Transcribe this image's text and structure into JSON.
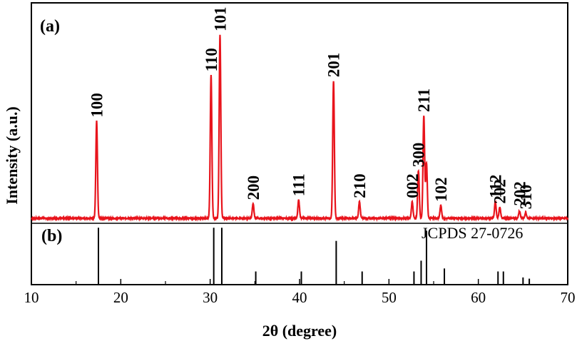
{
  "chart_data": {
    "type": "line",
    "xlabel": "2θ (degree)",
    "ylabel": "Intensity (a.u.)",
    "xlim": [
      10,
      70
    ],
    "xticks": [
      10,
      20,
      30,
      40,
      50,
      60,
      70
    ],
    "panel_a_label": "(a)",
    "panel_b_label": "(b)",
    "reference_label": "JCPDS 27-0726",
    "series_color": "#e8141c",
    "reference_color": "#000000",
    "pattern_a_peaks": [
      {
        "x": 17.3,
        "y": 0.53,
        "label": "100"
      },
      {
        "x": 30.1,
        "y": 0.78,
        "label": "110"
      },
      {
        "x": 31.1,
        "y": 1.0,
        "label": "101"
      },
      {
        "x": 34.8,
        "y": 0.08,
        "label": "200"
      },
      {
        "x": 39.9,
        "y": 0.1,
        "label": "111"
      },
      {
        "x": 43.8,
        "y": 0.75,
        "label": "201"
      },
      {
        "x": 46.7,
        "y": 0.09,
        "label": "210"
      },
      {
        "x": 52.6,
        "y": 0.09,
        "label": "002"
      },
      {
        "x": 53.3,
        "y": 0.26,
        "label": "300"
      },
      {
        "x": 53.9,
        "y": 0.56,
        "label": "211"
      },
      {
        "x": 54.2,
        "y": 0.3,
        "label": ""
      },
      {
        "x": 55.8,
        "y": 0.07,
        "label": "102"
      },
      {
        "x": 61.9,
        "y": 0.09,
        "label": "112"
      },
      {
        "x": 62.4,
        "y": 0.06,
        "label": "202"
      },
      {
        "x": 64.6,
        "y": 0.04,
        "label": "202"
      },
      {
        "x": 65.3,
        "y": 0.03,
        "label": "310"
      }
    ],
    "reference_lines_b": [
      {
        "x": 17.5,
        "h": 0.95
      },
      {
        "x": 30.4,
        "h": 0.95
      },
      {
        "x": 31.3,
        "h": 0.95
      },
      {
        "x": 35.1,
        "h": 0.22
      },
      {
        "x": 40.2,
        "h": 0.22
      },
      {
        "x": 44.1,
        "h": 0.73
      },
      {
        "x": 47.0,
        "h": 0.22
      },
      {
        "x": 52.8,
        "h": 0.22
      },
      {
        "x": 53.6,
        "h": 0.4
      },
      {
        "x": 54.2,
        "h": 0.9
      },
      {
        "x": 56.2,
        "h": 0.27
      },
      {
        "x": 62.2,
        "h": 0.22
      },
      {
        "x": 62.8,
        "h": 0.22
      },
      {
        "x": 65.0,
        "h": 0.12
      },
      {
        "x": 65.7,
        "h": 0.1
      }
    ]
  }
}
